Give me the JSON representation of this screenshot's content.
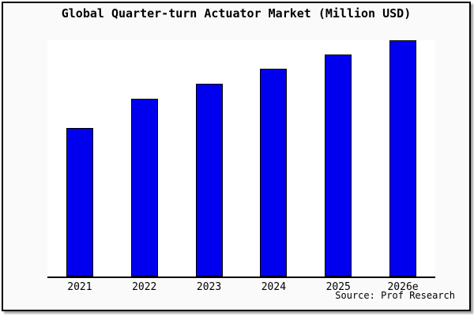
{
  "chart_data": {
    "type": "bar",
    "title": "Global Quarter-turn Actuator Market (Million USD)",
    "categories": [
      "2021",
      "2022",
      "2023",
      "2024",
      "2025",
      "2026e"
    ],
    "values": [
      188,
      225,
      244,
      263,
      281,
      299
    ],
    "value_unit": "relative-pixel-height (y-axis has no tick labels or gridlines in the chart)",
    "xlabel": "",
    "ylabel": "",
    "legend_position": "none",
    "gridlines": false,
    "bar_color": "#0000ee",
    "bar_border_color": "#000000",
    "axis_color": "#000000",
    "card_background_color": "#fafafa",
    "plot_background_color": "#ffffff",
    "source": "Source: Prof Research"
  }
}
